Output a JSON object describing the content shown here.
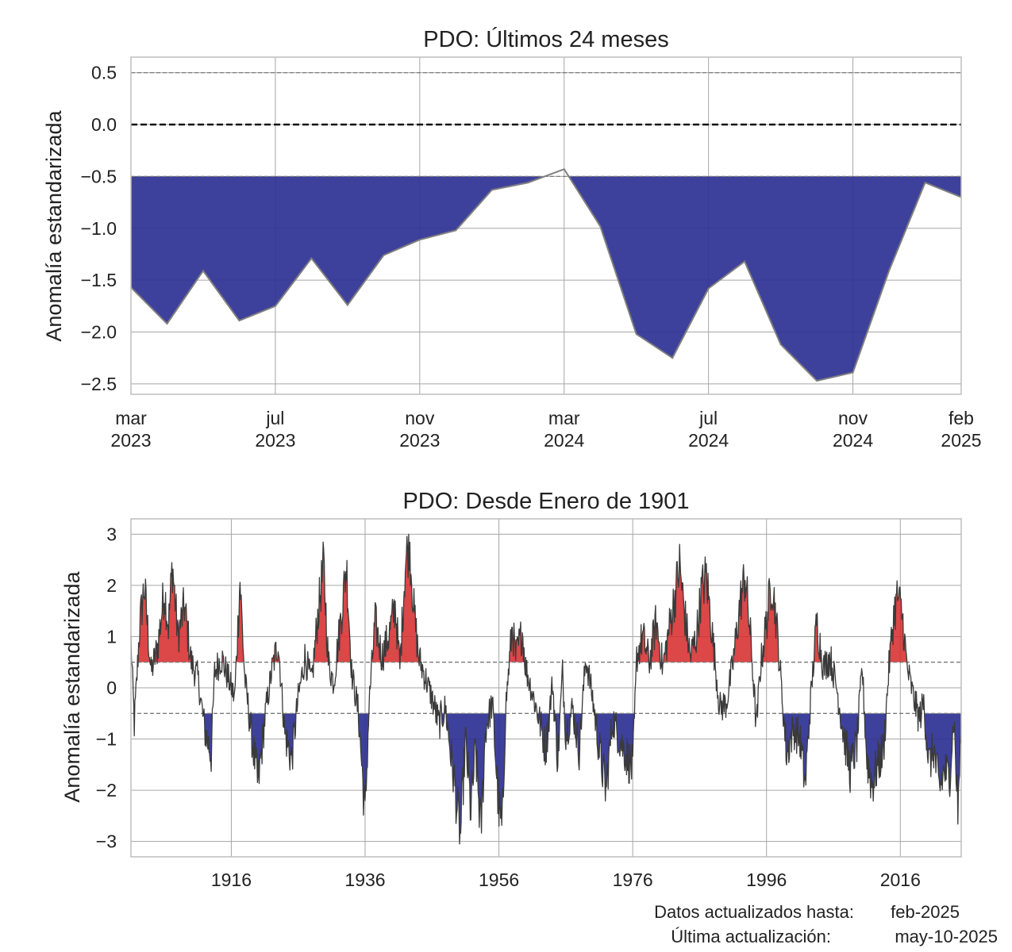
{
  "chart_data": [
    {
      "type": "area",
      "title": "PDO: Últimos 24 meses",
      "ylabel": "Anomalía estandarizada",
      "xlabel": "",
      "x": [
        "2023-03",
        "2023-04",
        "2023-05",
        "2023-06",
        "2023-07",
        "2023-08",
        "2023-09",
        "2023-10",
        "2023-11",
        "2023-12",
        "2024-01",
        "2024-02",
        "2024-03",
        "2024-04",
        "2024-05",
        "2024-06",
        "2024-07",
        "2024-08",
        "2024-09",
        "2024-10",
        "2024-11",
        "2024-12",
        "2025-01",
        "2025-02"
      ],
      "values": [
        -1.57,
        -1.92,
        -1.41,
        -1.89,
        -1.75,
        -1.29,
        -1.74,
        -1.26,
        -1.11,
        -1.02,
        -0.63,
        -0.56,
        -0.43,
        -0.98,
        -2.02,
        -2.25,
        -1.58,
        -1.32,
        -2.12,
        -2.47,
        -2.39,
        -1.41,
        -0.56,
        -0.7
      ],
      "ylim": [
        -2.6,
        0.65
      ],
      "yticks": [
        0.5,
        0.0,
        -0.5,
        -1.0,
        -1.5,
        -2.0,
        -2.5
      ],
      "ytick_labels": [
        "0.5",
        "0.0",
        "−0.5",
        "−1.0",
        "−1.5",
        "−2.0",
        "−2.5"
      ],
      "xticks": [
        {
          "x": "2023-03",
          "line1": "mar",
          "line2": "2023"
        },
        {
          "x": "2023-07",
          "line1": "jul",
          "line2": "2023"
        },
        {
          "x": "2023-11",
          "line1": "nov",
          "line2": "2023"
        },
        {
          "x": "2024-03",
          "line1": "mar",
          "line2": "2024"
        },
        {
          "x": "2024-07",
          "line1": "jul",
          "line2": "2024"
        },
        {
          "x": "2024-11",
          "line1": "nov",
          "line2": "2024"
        },
        {
          "x": "2025-02",
          "line1": "feb",
          "line2": "2025"
        }
      ],
      "thresholds": [
        0.5,
        -0.5
      ],
      "zero_line": 0.0,
      "grid": true,
      "fill_color_negative": "#2e3192",
      "line_color": "#7f7f7f"
    },
    {
      "type": "area",
      "title": "PDO: Desde Enero de 1901",
      "ylabel": "Anomalía estandarizada",
      "xlabel": "",
      "x_range": [
        1901.0,
        2025.1
      ],
      "ylim": [
        -3.3,
        3.3
      ],
      "yticks": [
        3,
        2,
        1,
        0,
        -1,
        -2,
        -3
      ],
      "ytick_labels": [
        "3",
        "2",
        "1",
        "0",
        "−1",
        "−2",
        "−3"
      ],
      "xticks": [
        1916,
        1936,
        1956,
        1976,
        1996,
        2016
      ],
      "thresholds": [
        0.5,
        -0.5
      ],
      "grid": true,
      "fill_color_positive": "#d62728",
      "fill_color_negative": "#2e3192",
      "line_color": "#3a3a3a",
      "keypoints": [
        [
          1901.0,
          0.9
        ],
        [
          1901.5,
          -0.7
        ],
        [
          1902.3,
          1.2
        ],
        [
          1903.0,
          2.0
        ],
        [
          1904.0,
          0.3
        ],
        [
          1905.0,
          0.8
        ],
        [
          1906.0,
          1.9
        ],
        [
          1906.6,
          1.2
        ],
        [
          1907.2,
          2.4
        ],
        [
          1908.0,
          1.0
        ],
        [
          1909.0,
          1.6
        ],
        [
          1910.0,
          0.5
        ],
        [
          1911.0,
          0.2
        ],
        [
          1912.0,
          -0.8
        ],
        [
          1913.0,
          -1.3
        ],
        [
          1913.5,
          0.3
        ],
        [
          1914.5,
          0.6
        ],
        [
          1915.5,
          0.2
        ],
        [
          1916.5,
          -0.2
        ],
        [
          1917.3,
          2.1
        ],
        [
          1918.0,
          0.2
        ],
        [
          1919.0,
          -0.9
        ],
        [
          1920.0,
          -1.9
        ],
        [
          1921.0,
          -0.6
        ],
        [
          1922.0,
          0.3
        ],
        [
          1923.0,
          0.9
        ],
        [
          1924.0,
          -0.9
        ],
        [
          1925.0,
          -1.4
        ],
        [
          1926.0,
          -0.2
        ],
        [
          1927.0,
          0.6
        ],
        [
          1928.0,
          0.1
        ],
        [
          1929.0,
          1.5
        ],
        [
          1929.8,
          2.4
        ],
        [
          1930.5,
          0.5
        ],
        [
          1931.3,
          0.1
        ],
        [
          1932.5,
          1.5
        ],
        [
          1933.2,
          2.4
        ],
        [
          1934.0,
          0.3
        ],
        [
          1935.0,
          -0.5
        ],
        [
          1936.0,
          -2.5
        ],
        [
          1936.6,
          -0.3
        ],
        [
          1937.5,
          1.3
        ],
        [
          1938.5,
          0.6
        ],
        [
          1939.5,
          1.0
        ],
        [
          1940.5,
          1.6
        ],
        [
          1941.2,
          0.4
        ],
        [
          1942.0,
          2.4
        ],
        [
          1942.6,
          2.9
        ],
        [
          1943.3,
          1.5
        ],
        [
          1944.0,
          0.6
        ],
        [
          1945.0,
          0.2
        ],
        [
          1946.0,
          -0.2
        ],
        [
          1947.0,
          -0.7
        ],
        [
          1948.0,
          -0.4
        ],
        [
          1949.0,
          -1.5
        ],
        [
          1949.5,
          -2.0
        ],
        [
          1950.2,
          -3.0
        ],
        [
          1951.0,
          -1.0
        ],
        [
          1951.8,
          -2.4
        ],
        [
          1952.5,
          -1.2
        ],
        [
          1953.3,
          -2.8
        ],
        [
          1954.0,
          -0.8
        ],
        [
          1955.0,
          -0.3
        ],
        [
          1956.0,
          -2.4
        ],
        [
          1956.5,
          -2.8
        ],
        [
          1957.0,
          -0.4
        ],
        [
          1958.0,
          1.2
        ],
        [
          1958.5,
          0.6
        ],
        [
          1959.5,
          1.1
        ],
        [
          1960.0,
          0.4
        ],
        [
          1961.0,
          -0.1
        ],
        [
          1962.0,
          -0.6
        ],
        [
          1963.0,
          -1.2
        ],
        [
          1964.0,
          0.1
        ],
        [
          1964.8,
          -1.4
        ],
        [
          1965.5,
          0.3
        ],
        [
          1966.0,
          -0.9
        ],
        [
          1967.0,
          -0.4
        ],
        [
          1968.0,
          -1.2
        ],
        [
          1969.0,
          0.6
        ],
        [
          1970.0,
          -0.2
        ],
        [
          1971.0,
          -1.2
        ],
        [
          1972.0,
          -2.0
        ],
        [
          1973.0,
          -0.6
        ],
        [
          1974.0,
          -1.0
        ],
        [
          1975.0,
          -1.3
        ],
        [
          1976.0,
          -1.6
        ],
        [
          1976.6,
          0.6
        ],
        [
          1977.5,
          1.0
        ],
        [
          1978.5,
          0.5
        ],
        [
          1979.5,
          1.3
        ],
        [
          1980.5,
          0.4
        ],
        [
          1981.5,
          1.2
        ],
        [
          1982.3,
          1.8
        ],
        [
          1983.0,
          2.4
        ],
        [
          1983.8,
          1.4
        ],
        [
          1984.6,
          0.6
        ],
        [
          1985.5,
          1.0
        ],
        [
          1986.3,
          1.9
        ],
        [
          1987.0,
          2.2
        ],
        [
          1988.0,
          0.9
        ],
        [
          1989.0,
          -0.4
        ],
        [
          1990.0,
          -0.3
        ],
        [
          1991.0,
          0.5
        ],
        [
          1992.0,
          1.6
        ],
        [
          1992.8,
          2.2
        ],
        [
          1993.6,
          1.0
        ],
        [
          1994.5,
          -0.8
        ],
        [
          1995.0,
          0.3
        ],
        [
          1996.0,
          1.3
        ],
        [
          1996.8,
          2.1
        ],
        [
          1997.4,
          1.4
        ],
        [
          1998.0,
          0.4
        ],
        [
          1999.0,
          -1.3
        ],
        [
          2000.0,
          -0.8
        ],
        [
          2001.0,
          -1.0
        ],
        [
          2001.8,
          -1.9
        ],
        [
          2002.5,
          -0.4
        ],
        [
          2003.5,
          1.3
        ],
        [
          2004.5,
          0.4
        ],
        [
          2005.5,
          0.6
        ],
        [
          2006.5,
          0.0
        ],
        [
          2007.5,
          -0.9
        ],
        [
          2008.5,
          -1.6
        ],
        [
          2009.5,
          -1.1
        ],
        [
          2010.3,
          0.4
        ],
        [
          2011.0,
          -1.4
        ],
        [
          2011.8,
          -1.9
        ],
        [
          2012.6,
          -1.5
        ],
        [
          2013.5,
          -1.2
        ],
        [
          2014.3,
          0.4
        ],
        [
          2015.0,
          1.4
        ],
        [
          2015.6,
          1.8
        ],
        [
          2016.3,
          1.4
        ],
        [
          2017.0,
          0.4
        ],
        [
          2018.0,
          -0.2
        ],
        [
          2018.8,
          -0.6
        ],
        [
          2019.5,
          -0.3
        ],
        [
          2020.3,
          -1.5
        ],
        [
          2021.0,
          -1.2
        ],
        [
          2021.8,
          -2.0
        ],
        [
          2022.6,
          -1.6
        ],
        [
          2023.3,
          -1.8
        ],
        [
          2024.0,
          -0.6
        ],
        [
          2024.6,
          -2.4
        ],
        [
          2025.1,
          -0.7
        ]
      ]
    }
  ],
  "footer": {
    "updated_label": "Datos actualizados hasta:",
    "updated_value": "feb-2025",
    "last_label": "Última actualización:",
    "last_value": "may-10-2025"
  }
}
